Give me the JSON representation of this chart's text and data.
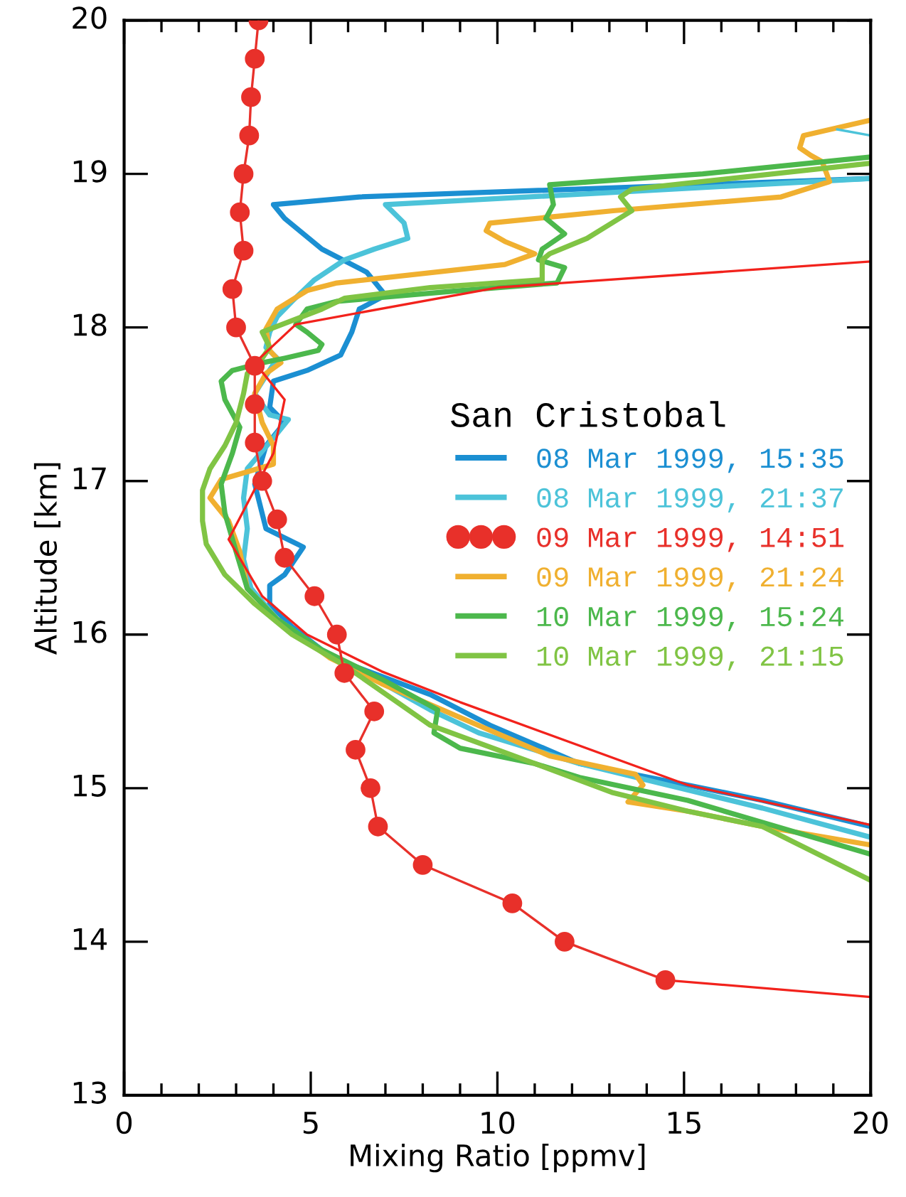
{
  "chart_data": {
    "type": "line",
    "xlabel": "Mixing Ratio [ppmv]",
    "ylabel": "Altitude [km]",
    "legend_title": "San Cristobal",
    "legend": "right",
    "grid": false,
    "xlim": [
      0,
      20
    ],
    "xticks": [
      0,
      5,
      10,
      15,
      20
    ],
    "ylim": [
      13,
      20
    ],
    "yticks": [
      13,
      14,
      15,
      16,
      17,
      18,
      19,
      20
    ],
    "series": [
      {
        "name": "08 Mar 1999, 15:35",
        "color": "#1b8fd2",
        "marker": "none",
        "x": [
          20,
          6.3,
          4.0,
          4.3,
          5.3,
          6.5,
          7.0,
          6.3,
          6.1,
          5.8,
          4.9,
          4.0,
          3.9,
          4.3,
          3.8,
          3.5,
          3.8,
          4.8,
          4.3,
          3.9,
          3.9,
          4.5,
          5.3,
          6.1,
          8.2,
          9.8,
          12.2,
          15.1,
          17.1,
          20
        ],
        "values": [
          18.97,
          18.85,
          18.8,
          18.71,
          18.51,
          18.36,
          18.21,
          18.12,
          17.97,
          17.82,
          17.72,
          17.65,
          17.48,
          17.38,
          17.23,
          16.98,
          16.69,
          16.57,
          16.39,
          16.32,
          16.2,
          16.05,
          15.9,
          15.8,
          15.61,
          15.41,
          15.16,
          15.02,
          14.92,
          14.75
        ]
      },
      {
        "name": "08 Mar 1999, 21:37",
        "color": "#4cc3d9",
        "marker": "none",
        "x": [
          20,
          7.0,
          7.5,
          7.6,
          6.7,
          5.9,
          5.1,
          4.5,
          4.1,
          3.9,
          3.8,
          4.1,
          3.5,
          3.9,
          4.4,
          4.0,
          3.3,
          3.2,
          3.3,
          3.2,
          3.4,
          4.1,
          5.3,
          7.1,
          8.2,
          9.5,
          12.2,
          17.1,
          20
        ],
        "values": [
          18.97,
          18.8,
          18.68,
          18.58,
          18.51,
          18.44,
          18.31,
          18.17,
          18.07,
          17.97,
          17.87,
          17.8,
          17.57,
          17.43,
          17.4,
          17.28,
          17.08,
          16.89,
          16.69,
          16.49,
          16.3,
          16.1,
          15.9,
          15.66,
          15.51,
          15.36,
          15.16,
          14.87,
          14.68
        ]
      },
      {
        "name": "09 Mar 1999, 14:51",
        "color": "#e8302a",
        "marker": "circle",
        "x": [
          3.6,
          3.5,
          3.4,
          3.35,
          3.2,
          3.1,
          3.2,
          2.9,
          3.0,
          3.5,
          3.5,
          3.5,
          3.7,
          4.1,
          4.3,
          5.1,
          5.7,
          5.9,
          6.7,
          6.2,
          6.6,
          6.8,
          8.0,
          10.4,
          11.8,
          14.5
        ],
        "values": [
          20,
          19.75,
          19.5,
          19.25,
          19,
          18.75,
          18.5,
          18.25,
          18,
          17.75,
          17.5,
          17.25,
          17,
          16.75,
          16.5,
          16.25,
          16,
          15.75,
          15.5,
          15.25,
          15,
          14.75,
          14.5,
          14.25,
          14,
          13.75
        ]
      },
      {
        "name": "09 Mar 1999, 21:24",
        "color": "#f0b030",
        "marker": "none",
        "x": [
          20,
          18.2,
          18.1,
          18.4,
          18.7,
          18.9,
          17.6,
          13.1,
          9.8,
          9.7,
          10.2,
          11.0,
          10.2,
          5.7,
          4.9,
          4.1,
          3.8,
          3.9,
          4.2,
          3.8,
          3.5,
          3.7,
          4.0,
          4.0,
          2.6,
          2.3,
          2.8,
          3.1,
          3.3,
          4.1,
          5.5,
          6.9,
          9.0,
          11.4,
          13.7,
          13.9,
          13.5,
          15.1,
          17.1,
          20
        ],
        "values": [
          19.35,
          19.25,
          19.17,
          19.12,
          19.08,
          18.95,
          18.85,
          18.76,
          18.68,
          18.63,
          18.56,
          18.48,
          18.41,
          18.29,
          18.24,
          18.12,
          17.99,
          17.85,
          17.77,
          17.7,
          17.57,
          17.38,
          17.23,
          17.11,
          17.01,
          16.89,
          16.74,
          16.54,
          16.3,
          16.1,
          15.85,
          15.68,
          15.46,
          15.21,
          15.09,
          15.02,
          14.91,
          14.85,
          14.75,
          14.63
        ]
      },
      {
        "name": "10 Mar 1999, 15:24",
        "color": "#4cb84c",
        "marker": "none",
        "x": [
          20,
          15.5,
          11.4,
          11.5,
          11.3,
          11.8,
          11.2,
          11.1,
          11.8,
          11.6,
          9.0,
          5.7,
          4.9,
          4.6,
          4.9,
          5.3,
          5.2,
          4.3,
          3.7,
          2.9,
          2.6,
          2.7,
          3.1,
          2.9,
          2.6,
          2.7,
          3.0,
          3.3,
          4.1,
          5.3,
          6.9,
          8.4,
          8.3,
          9.0,
          11.0,
          12.2,
          15.1,
          20
        ],
        "values": [
          19.11,
          19.0,
          18.93,
          18.8,
          18.71,
          18.61,
          18.51,
          18.44,
          18.39,
          18.29,
          18.24,
          18.17,
          18.12,
          18.02,
          17.97,
          17.89,
          17.85,
          17.8,
          17.77,
          17.72,
          17.65,
          17.53,
          17.35,
          17.18,
          16.98,
          16.79,
          16.54,
          16.3,
          16.1,
          15.9,
          15.71,
          15.51,
          15.36,
          15.26,
          15.16,
          15.07,
          14.92,
          14.57
        ]
      },
      {
        "name": "10 Mar 1999, 21:15",
        "color": "#80c444",
        "marker": "none",
        "x": [
          20,
          13.6,
          13.3,
          13.6,
          12.4,
          11.4,
          11.2,
          11.2,
          8.2,
          5.9,
          5.3,
          3.7,
          3.9,
          3.7,
          3.3,
          3.2,
          3.0,
          2.7,
          2.3,
          2.1,
          2.1,
          2.2,
          2.7,
          3.5,
          4.5,
          5.9,
          8.2,
          11.0,
          13.1,
          15.1,
          17.1,
          20
        ],
        "values": [
          19.07,
          18.9,
          18.85,
          18.76,
          18.58,
          18.48,
          18.44,
          18.31,
          18.26,
          18.19,
          18.12,
          17.97,
          17.87,
          17.8,
          17.7,
          17.57,
          17.38,
          17.23,
          17.08,
          16.94,
          16.74,
          16.59,
          16.39,
          16.2,
          16.0,
          15.8,
          15.41,
          15.16,
          14.97,
          14.85,
          14.75,
          14.4
        ]
      },
      {
        "color": "#f2221c",
        "marker": "none",
        "x": [
          20,
          10.0,
          4.6,
          3.5,
          4.3,
          4.0,
          2.8,
          3.7,
          4.9,
          6.9,
          9.0,
          15.1,
          20
        ],
        "values": [
          18.43,
          18.26,
          18.02,
          17.77,
          17.53,
          17.18,
          16.62,
          16.25,
          16.0,
          15.76,
          15.56,
          15.02,
          14.76
        ]
      },
      {
        "color": "#f2221c",
        "marker": "none",
        "x": [
          14.5,
          20
        ],
        "values": [
          13.75,
          13.64
        ]
      },
      {
        "color": "#4cc3d9",
        "marker": "none",
        "x": [
          20,
          19.1
        ],
        "values": [
          19.25,
          19.29
        ]
      }
    ]
  }
}
